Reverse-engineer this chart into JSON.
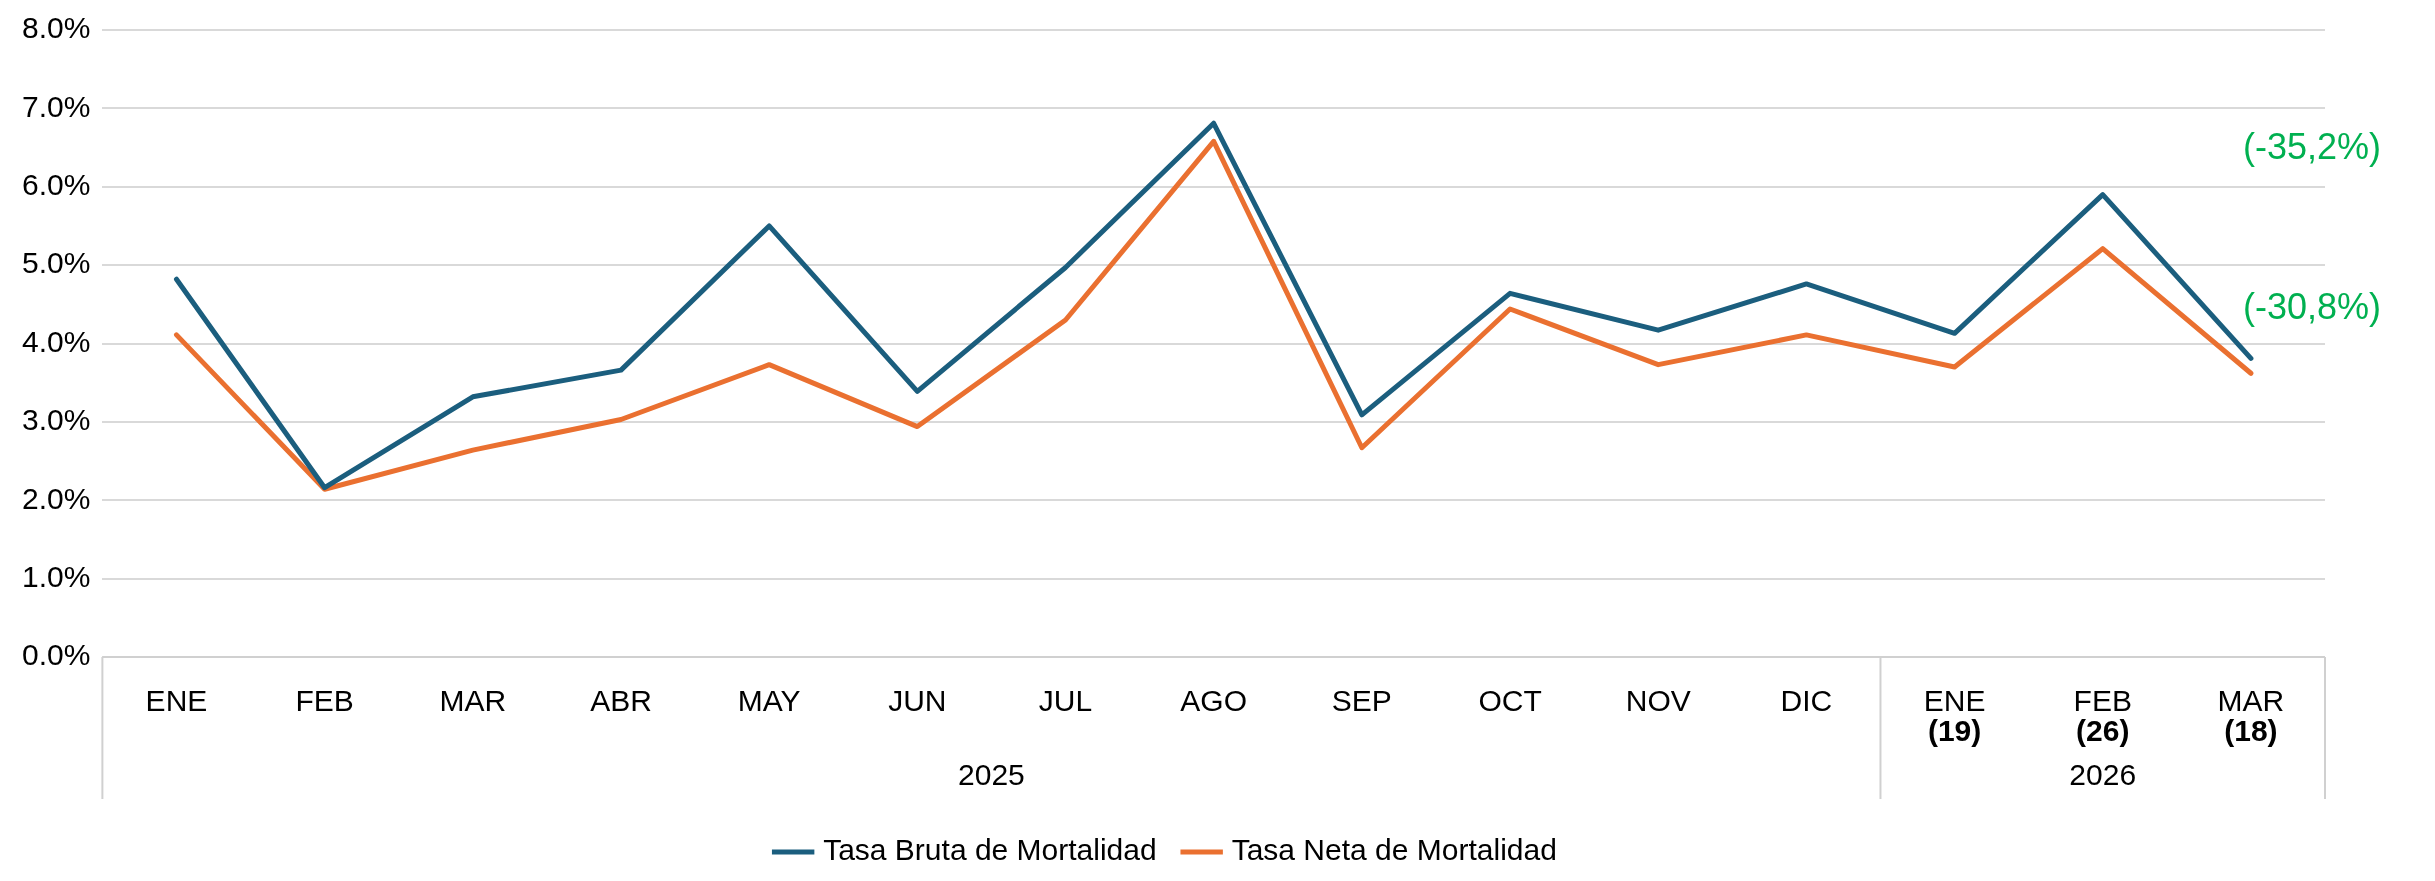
{
  "chart_data": {
    "type": "line",
    "categories": [
      "ENE",
      "FEB",
      "MAR",
      "ABR",
      "MAY",
      "JUN",
      "JUL",
      "AGO",
      "SEP",
      "OCT",
      "NOV",
      "DIC",
      "ENE\n(19)",
      "FEB\n(26)",
      "MAR\n(18)"
    ],
    "series": [
      {
        "name": "Tasa Bruta de Mortalidad",
        "color": "#1b5e7e",
        "values": [
          4.82,
          2.16,
          3.32,
          3.66,
          5.5,
          3.39,
          4.97,
          6.81,
          3.09,
          4.64,
          4.17,
          4.76,
          4.13,
          5.9,
          3.81
        ]
      },
      {
        "name": "Tasa Neta de Mortalidad",
        "color": "#ea7030",
        "values": [
          4.11,
          2.14,
          2.64,
          3.03,
          3.73,
          2.94,
          4.3,
          6.58,
          2.67,
          4.44,
          3.73,
          4.11,
          3.7,
          5.21,
          3.62
        ]
      }
    ],
    "ylim": [
      0,
      8
    ],
    "yticks": [
      {
        "value": 0,
        "label": "0.0%"
      },
      {
        "value": 1,
        "label": "1.0%"
      },
      {
        "value": 2,
        "label": "2.0%"
      },
      {
        "value": 3,
        "label": "3.0%"
      },
      {
        "value": 4,
        "label": "4.0%"
      },
      {
        "value": 5,
        "label": "5.0%"
      },
      {
        "value": 6,
        "label": "6.0%"
      },
      {
        "value": 7,
        "label": "7.0%"
      },
      {
        "value": 8,
        "label": "8.0%"
      }
    ],
    "grid": "y",
    "legend": "bottom",
    "marker": "none",
    "line_style": "solid",
    "annotations": [
      "2025",
      "2026",
      "(-35,2%)",
      "(-30,8%)"
    ]
  }
}
